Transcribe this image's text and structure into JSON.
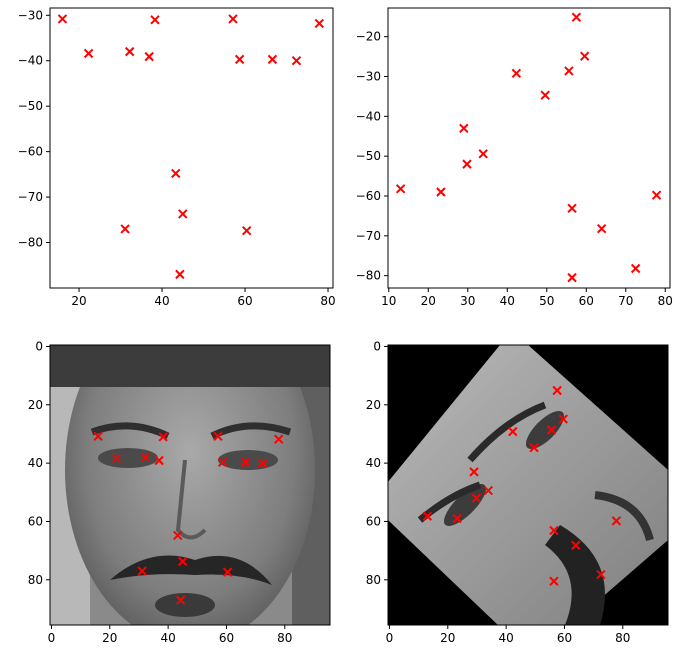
{
  "colors": {
    "marker": "#ff0000",
    "axes": "#000000",
    "background": "#ffffff",
    "image_black": "#000000"
  },
  "chart_data": [
    {
      "type": "scatter",
      "panel": "top-left",
      "marker": "x",
      "grid": false,
      "xlim": [
        13.0,
        81.2
      ],
      "ylim": [
        -90.0,
        -28.4
      ],
      "xticks": [
        20,
        40,
        60,
        80
      ],
      "yticks": [
        -30,
        -40,
        -50,
        -60,
        -70,
        -80
      ],
      "points": [
        [
          16.0,
          -30.8
        ],
        [
          22.3,
          -38.4
        ],
        [
          32.2,
          -38.0
        ],
        [
          36.9,
          -39.1
        ],
        [
          38.3,
          -31.0
        ],
        [
          57.1,
          -30.8
        ],
        [
          58.7,
          -39.7
        ],
        [
          66.6,
          -39.7
        ],
        [
          72.4,
          -40.0
        ],
        [
          77.9,
          -31.8
        ],
        [
          43.3,
          -64.8
        ],
        [
          45.0,
          -73.7
        ],
        [
          31.1,
          -77.0
        ],
        [
          60.4,
          -77.4
        ],
        [
          44.3,
          -87.0
        ]
      ]
    },
    {
      "type": "scatter",
      "panel": "top-right",
      "marker": "x",
      "grid": false,
      "xlim": [
        9.8,
        81.2
      ],
      "ylim": [
        -83.1,
        -12.8
      ],
      "xticks": [
        10,
        20,
        30,
        40,
        50,
        60,
        70,
        80
      ],
      "yticks": [
        -20,
        -30,
        -40,
        -50,
        -60,
        -70,
        -80
      ],
      "points": [
        [
          57.5,
          -15.1
        ],
        [
          59.6,
          -24.9
        ],
        [
          42.3,
          -29.2
        ],
        [
          55.6,
          -28.6
        ],
        [
          49.6,
          -34.7
        ],
        [
          29.0,
          -43.0
        ],
        [
          29.8,
          -52.0
        ],
        [
          33.9,
          -49.4
        ],
        [
          13.0,
          -58.2
        ],
        [
          23.2,
          -59.0
        ],
        [
          56.4,
          -63.1
        ],
        [
          63.9,
          -68.2
        ],
        [
          77.8,
          -59.8
        ],
        [
          56.4,
          -80.5
        ],
        [
          72.5,
          -78.2
        ]
      ]
    },
    {
      "type": "image",
      "panel": "bottom-left",
      "image": "grayscale face photograph, 96x96 px, front-facing",
      "marker": "x",
      "xlim": [
        -0.5,
        95.5
      ],
      "ylim": [
        95.5,
        -0.5
      ],
      "xticks": [
        0,
        20,
        40,
        60,
        80
      ],
      "yticks": [
        0,
        20,
        40,
        60,
        80
      ],
      "points": [
        [
          16.0,
          30.8
        ],
        [
          22.3,
          38.4
        ],
        [
          32.2,
          38.0
        ],
        [
          36.9,
          39.1
        ],
        [
          38.3,
          31.0
        ],
        [
          57.1,
          30.8
        ],
        [
          58.7,
          39.7
        ],
        [
          66.6,
          39.7
        ],
        [
          72.4,
          40.0
        ],
        [
          77.9,
          31.8
        ],
        [
          43.3,
          64.8
        ],
        [
          45.0,
          73.7
        ],
        [
          31.1,
          77.0
        ],
        [
          60.4,
          77.4
        ],
        [
          44.3,
          87.0
        ]
      ]
    },
    {
      "type": "image",
      "panel": "bottom-right",
      "image": "same face rotated about 45 degrees inside black background",
      "marker": "x",
      "xlim": [
        -0.5,
        95.5
      ],
      "ylim": [
        95.5,
        -0.5
      ],
      "xticks": [
        0,
        20,
        40,
        60,
        80
      ],
      "yticks": [
        0,
        20,
        40,
        60,
        80
      ],
      "points": [
        [
          57.5,
          15.1
        ],
        [
          59.6,
          24.9
        ],
        [
          42.3,
          29.2
        ],
        [
          55.6,
          28.6
        ],
        [
          49.6,
          34.7
        ],
        [
          29.0,
          43.0
        ],
        [
          29.8,
          52.0
        ],
        [
          33.9,
          49.4
        ],
        [
          13.0,
          58.2
        ],
        [
          23.2,
          59.0
        ],
        [
          56.4,
          63.1
        ],
        [
          63.9,
          68.2
        ],
        [
          77.8,
          59.8
        ],
        [
          56.4,
          80.5
        ],
        [
          72.5,
          78.2
        ]
      ]
    }
  ]
}
